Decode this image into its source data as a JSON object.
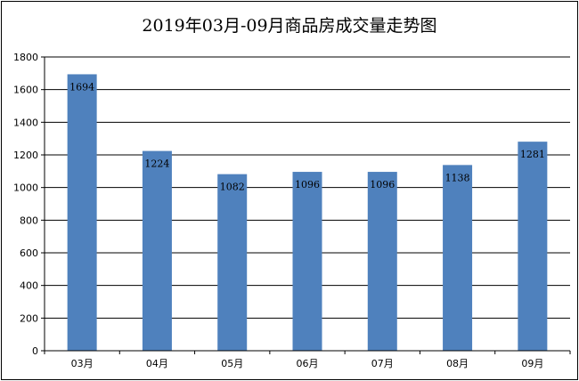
{
  "chart_data": {
    "type": "bar",
    "title": "2019年03月-09月商品房成交量走势图",
    "xlabel": "",
    "ylabel": "",
    "categories": [
      "03月",
      "04月",
      "05月",
      "06月",
      "07月",
      "08月",
      "09月"
    ],
    "values": [
      1694,
      1224,
      1082,
      1096,
      1096,
      1138,
      1281
    ],
    "ylim": [
      0,
      1800
    ],
    "yticks": [
      0,
      200,
      400,
      600,
      800,
      1000,
      1200,
      1400,
      1600,
      1800
    ],
    "grid": true,
    "legend": "none",
    "bar_color": "#4f81bd",
    "data_labels": true
  }
}
